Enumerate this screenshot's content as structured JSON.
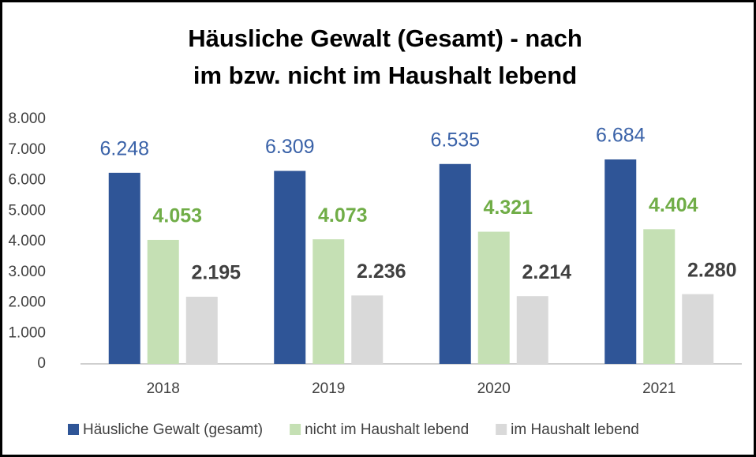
{
  "chart_data": {
    "type": "bar",
    "title": [
      "Häusliche Gewalt (Gesamt) - nach",
      "im bzw. nicht im Haushalt lebend"
    ],
    "categories": [
      "2018",
      "2019",
      "2020",
      "2021"
    ],
    "series": [
      {
        "name": "Häusliche Gewalt (gesamt)",
        "color": "#2f5597",
        "label_color": "#3a62a8",
        "values": [
          6248,
          6309,
          6535,
          6684
        ],
        "value_labels": [
          "6.248",
          "6.309",
          "6.535",
          "6.684"
        ]
      },
      {
        "name": "nicht im Haushalt lebend",
        "color": "#c5e0b4",
        "label_color": "#70ad47",
        "values": [
          4053,
          4073,
          4321,
          4404
        ],
        "value_labels": [
          "4.053",
          "4.073",
          "4.321",
          "4.404"
        ]
      },
      {
        "name": "im Haushalt lebend",
        "color": "#d9d9d9",
        "label_color": "#404040",
        "values": [
          2195,
          2236,
          2214,
          2280
        ],
        "value_labels": [
          "2.195",
          "2.236",
          "2.214",
          "2.280"
        ]
      }
    ],
    "ylim": [
      0,
      8000
    ],
    "yticks": [
      0,
      {
        "value": 1000,
        "label": "1.000"
      },
      {
        "value": 2000,
        "label": "2.000"
      },
      {
        "value": 3000,
        "label": "3.000"
      },
      {
        "value": 4000,
        "label": "4.000"
      },
      {
        "value": 5000,
        "label": "5.000"
      },
      {
        "value": 6000,
        "label": "6.000"
      },
      {
        "value": 7000,
        "label": "7.000"
      },
      {
        "value": 8000,
        "label": "8.000"
      }
    ],
    "grid": false,
    "legend": "bottom"
  }
}
